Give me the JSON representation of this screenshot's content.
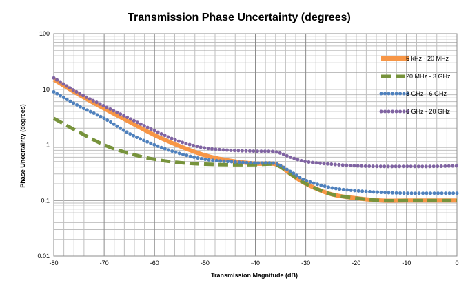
{
  "chart_data": {
    "type": "line",
    "title": "Transmission Phase Uncertainty (degrees)",
    "xlabel": "Transmission Magnitude (dB)",
    "ylabel": "Phase Uncertainty (degrees)",
    "xlim": [
      -80,
      0
    ],
    "ylim": [
      0.01,
      100
    ],
    "yscale": "log",
    "x_ticks": [
      "-80",
      "-70",
      "-60",
      "-50",
      "-40",
      "-30",
      "-20",
      "-10",
      "0"
    ],
    "y_ticks": [
      "0.01",
      "0.1",
      "1",
      "10",
      "100"
    ],
    "grid": true,
    "legend_position": "right",
    "series": [
      {
        "name": "5 kHz - 20 MHz",
        "color": "#f79646",
        "style": "solid",
        "x": [
          -80,
          -75,
          -70,
          -65,
          -60,
          -55,
          -50,
          -45,
          -40,
          -36,
          -33,
          -30,
          -25,
          -20,
          -15,
          -10,
          -5,
          0
        ],
        "y": [
          15,
          8,
          4.5,
          2.6,
          1.5,
          0.95,
          0.65,
          0.52,
          0.46,
          0.45,
          0.3,
          0.2,
          0.13,
          0.11,
          0.1,
          0.1,
          0.1,
          0.1
        ]
      },
      {
        "name": "20 MHz - 3 GHz",
        "color": "#77933c",
        "style": "dashed",
        "x": [
          -80,
          -75,
          -70,
          -65,
          -60,
          -55,
          -50,
          -45,
          -40,
          -36,
          -33,
          -30,
          -25,
          -20,
          -15,
          -10,
          -5,
          0
        ],
        "y": [
          3,
          1.7,
          1,
          0.7,
          0.55,
          0.48,
          0.45,
          0.44,
          0.44,
          0.44,
          0.3,
          0.2,
          0.13,
          0.11,
          0.1,
          0.1,
          0.1,
          0.1
        ]
      },
      {
        "name": "3 GHz - 6 GHz",
        "color": "#4f81bd",
        "style": "dotted",
        "x": [
          -80,
          -75,
          -70,
          -65,
          -60,
          -55,
          -50,
          -45,
          -40,
          -36,
          -33,
          -30,
          -25,
          -20,
          -15,
          -10,
          -5,
          0
        ],
        "y": [
          9,
          5,
          3,
          1.6,
          1,
          0.7,
          0.55,
          0.5,
          0.47,
          0.46,
          0.33,
          0.23,
          0.17,
          0.15,
          0.14,
          0.135,
          0.135,
          0.135
        ]
      },
      {
        "name": "6 GHz - 20 GHz",
        "color": "#8064a2",
        "style": "dotted",
        "x": [
          -80,
          -75,
          -70,
          -65,
          -60,
          -55,
          -50,
          -45,
          -40,
          -36,
          -33,
          -30,
          -25,
          -20,
          -15,
          -10,
          -5,
          0
        ],
        "y": [
          16,
          8.5,
          5,
          3,
          1.8,
          1.15,
          0.88,
          0.8,
          0.77,
          0.75,
          0.6,
          0.5,
          0.45,
          0.42,
          0.41,
          0.41,
          0.41,
          0.42
        ]
      }
    ]
  }
}
